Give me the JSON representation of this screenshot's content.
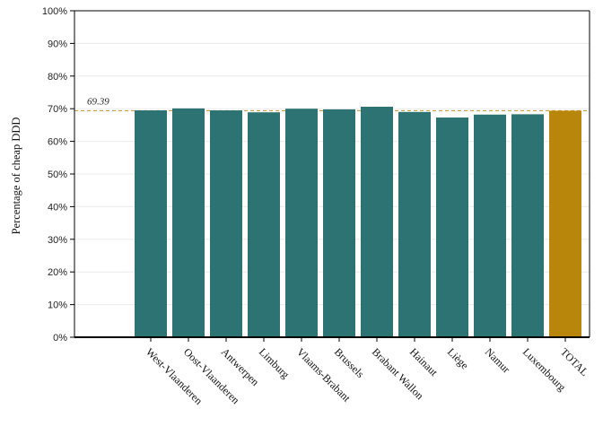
{
  "chart_data": {
    "type": "bar",
    "title": "",
    "xlabel": "",
    "ylabel": "Percentage of cheap DDD",
    "categories": [
      "West-Vlaanderen",
      "Oost-Vlaanderen",
      "Antwerpen",
      "Limburg",
      "Vlaams-Brabant",
      "Brussels",
      "Brabant Wallon",
      "Hainaut",
      "Liège",
      "Namur",
      "Luxembourg",
      "TOTAL"
    ],
    "values": [
      69.5,
      70.1,
      69.5,
      68.9,
      70.0,
      69.8,
      70.6,
      69.0,
      67.3,
      68.2,
      68.3,
      69.39
    ],
    "ylim": [
      0,
      100
    ],
    "yticks": [
      0,
      10,
      20,
      30,
      40,
      50,
      60,
      70,
      80,
      90,
      100
    ],
    "ytick_labels": [
      "0%",
      "10%",
      "20%",
      "30%",
      "40%",
      "50%",
      "60%",
      "70%",
      "80%",
      "90%",
      "100%"
    ],
    "reference_line": {
      "value": 69.39,
      "label": "69.39",
      "color": "#c8902a"
    },
    "colors": {
      "bar": "#2e7373",
      "highlight": "#b8860b",
      "grid": "#ebebeb"
    },
    "highlight_category": "TOTAL",
    "grid": true,
    "legend": "none"
  }
}
